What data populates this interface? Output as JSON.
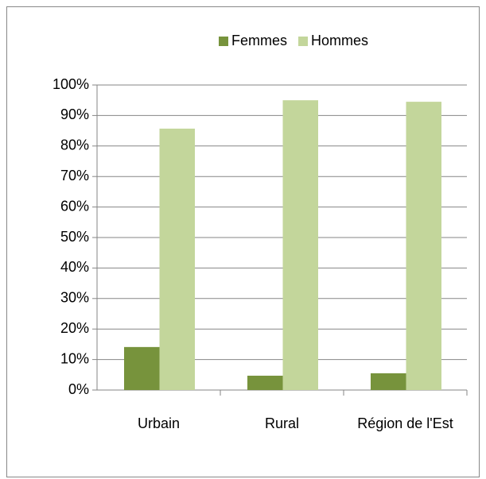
{
  "chart_data": {
    "type": "bar",
    "categories": [
      "Urbain",
      "Rural",
      "Région de l'Est"
    ],
    "series": [
      {
        "name": "Femmes",
        "color": "#77933c",
        "values": [
          14.1,
          4.7,
          5.5
        ]
      },
      {
        "name": "Hommes",
        "color": "#c3d69b",
        "values": [
          85.7,
          95.0,
          94.5
        ]
      }
    ],
    "ylim": [
      0,
      100
    ],
    "yticks": [
      {
        "value": 0,
        "label": "0%"
      },
      {
        "value": 10,
        "label": "10%"
      },
      {
        "value": 20,
        "label": "20%"
      },
      {
        "value": 30,
        "label": "30%"
      },
      {
        "value": 40,
        "label": "40%"
      },
      {
        "value": 50,
        "label": "50%"
      },
      {
        "value": 60,
        "label": "60%"
      },
      {
        "value": 70,
        "label": "70%"
      },
      {
        "value": 80,
        "label": "80%"
      },
      {
        "value": 90,
        "label": "90%"
      },
      {
        "value": 100,
        "label": "100%"
      }
    ],
    "grid": true,
    "legend": "top"
  }
}
